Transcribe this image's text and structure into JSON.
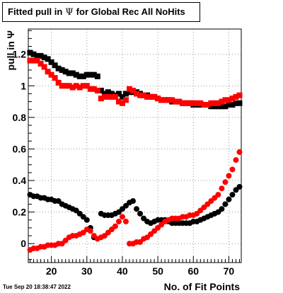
{
  "title": {
    "prefix": "Fitted pull in",
    "symbol": "Ψ",
    "suffix": "for Global Rec All NoHits"
  },
  "timestamp": "Tue Sep 20 18:38:47 2022",
  "colors": {
    "series_black": "#000000",
    "series_red": "#ff0000",
    "grid": "#999999"
  },
  "chart_data": {
    "type": "scatter",
    "xlabel": "No. of Fit Points",
    "ylabel": "pull in  Ψ",
    "xlim": [
      13.5,
      73.5
    ],
    "ylim": [
      -0.12,
      1.36
    ],
    "xticks": [
      20,
      30,
      40,
      50,
      60,
      70
    ],
    "yticks": [
      0,
      0.2,
      0.4,
      0.6,
      0.8,
      1,
      1.2
    ],
    "ytick_labels": [
      "0",
      "0.2",
      "0.4",
      "0.6",
      "0.8",
      "1",
      "1.2"
    ],
    "grid": true,
    "series": [
      {
        "color": "black",
        "marker": "square",
        "x": [
          14,
          15,
          16,
          17,
          18,
          19,
          20,
          21,
          22,
          23,
          24,
          25,
          26,
          27,
          28,
          29,
          30,
          31,
          32,
          33,
          34,
          35,
          36,
          37,
          38,
          39,
          40,
          41,
          42,
          43,
          44,
          45,
          46,
          47,
          48,
          49,
          50,
          51,
          52,
          53,
          54,
          55,
          56,
          57,
          58,
          59,
          60,
          61,
          62,
          63,
          64,
          65,
          66,
          67,
          68,
          69,
          70,
          71,
          72,
          73
        ],
        "y": [
          1.21,
          1.2,
          1.19,
          1.19,
          1.18,
          1.17,
          1.15,
          1.13,
          1.11,
          1.1,
          1.09,
          1.08,
          1.08,
          1.07,
          1.06,
          1.06,
          1.07,
          1.07,
          1.07,
          1.06,
          0.97,
          0.95,
          0.96,
          0.95,
          0.94,
          0.95,
          0.93,
          0.95,
          0.96,
          0.96,
          0.96,
          0.95,
          0.94,
          0.94,
          0.93,
          0.93,
          0.92,
          0.91,
          0.91,
          0.91,
          0.9,
          0.9,
          0.9,
          0.89,
          0.89,
          0.89,
          0.88,
          0.88,
          0.88,
          0.88,
          0.88,
          0.87,
          0.87,
          0.87,
          0.87,
          0.87,
          0.88,
          0.88,
          0.89,
          0.89
        ]
      },
      {
        "color": "red",
        "marker": "square",
        "x": [
          14,
          15,
          16,
          17,
          18,
          19,
          20,
          21,
          22,
          23,
          24,
          25,
          26,
          27,
          28,
          29,
          30,
          31,
          32,
          33,
          34,
          35,
          36,
          37,
          38,
          39,
          40,
          41,
          42,
          43,
          44,
          45,
          46,
          47,
          48,
          49,
          50,
          51,
          52,
          53,
          54,
          55,
          56,
          57,
          58,
          59,
          60,
          61,
          62,
          63,
          64,
          65,
          66,
          67,
          68,
          69,
          70,
          71,
          72,
          73
        ],
        "y": [
          1.16,
          1.16,
          1.16,
          1.14,
          1.12,
          1.09,
          1.07,
          1.05,
          1.02,
          1.0,
          1.0,
          1.0,
          0.99,
          1.0,
          0.99,
          1.0,
          1.0,
          0.98,
          0.98,
          0.97,
          0.92,
          0.93,
          0.93,
          0.93,
          0.93,
          0.9,
          0.89,
          0.91,
          0.98,
          0.97,
          0.95,
          0.94,
          0.94,
          0.93,
          0.93,
          0.93,
          0.92,
          0.91,
          0.91,
          0.91,
          0.91,
          0.9,
          0.9,
          0.89,
          0.89,
          0.89,
          0.89,
          0.89,
          0.89,
          0.88,
          0.88,
          0.89,
          0.89,
          0.89,
          0.9,
          0.91,
          0.91,
          0.92,
          0.93,
          0.94
        ]
      },
      {
        "color": "black",
        "marker": "circle",
        "x": [
          14,
          15,
          16,
          17,
          18,
          19,
          20,
          21,
          22,
          23,
          24,
          25,
          26,
          27,
          28,
          29,
          30,
          31,
          32,
          34,
          35,
          36,
          37,
          38,
          39,
          40,
          41,
          42,
          43,
          44,
          45,
          46,
          47,
          48,
          49,
          50,
          51,
          52,
          53,
          54,
          55,
          56,
          57,
          58,
          59,
          60,
          61,
          62,
          63,
          64,
          65,
          66,
          67,
          68,
          69,
          70,
          71,
          72,
          73
        ],
        "y": [
          0.31,
          0.3,
          0.3,
          0.29,
          0.29,
          0.28,
          0.28,
          0.27,
          0.27,
          0.25,
          0.24,
          0.23,
          0.22,
          0.21,
          0.19,
          0.17,
          0.15,
          0.1,
          0.04,
          0.19,
          0.18,
          0.18,
          0.18,
          0.19,
          0.2,
          0.22,
          0.24,
          0.26,
          0.27,
          0.22,
          0.19,
          0.16,
          0.14,
          0.13,
          0.14,
          0.15,
          0.15,
          0.15,
          0.14,
          0.13,
          0.13,
          0.13,
          0.13,
          0.13,
          0.13,
          0.14,
          0.14,
          0.15,
          0.16,
          0.17,
          0.18,
          0.19,
          0.2,
          0.22,
          0.25,
          0.28,
          0.31,
          0.34,
          0.36
        ]
      },
      {
        "color": "red",
        "marker": "circle",
        "x": [
          14,
          15,
          16,
          17,
          18,
          19,
          20,
          21,
          22,
          23,
          24,
          25,
          26,
          27,
          28,
          29,
          30,
          31,
          32,
          33,
          34,
          35,
          36,
          37,
          38,
          39,
          40,
          41,
          42,
          43,
          44,
          45,
          46,
          47,
          48,
          49,
          50,
          51,
          52,
          53,
          54,
          55,
          56,
          57,
          58,
          59,
          60,
          61,
          62,
          63,
          64,
          65,
          66,
          67,
          68,
          69,
          70,
          71,
          72,
          73
        ],
        "y": [
          -0.04,
          -0.03,
          -0.03,
          -0.02,
          -0.02,
          -0.01,
          -0.01,
          -0.01,
          0.0,
          0.0,
          0.02,
          0.04,
          0.05,
          0.05,
          0.06,
          0.07,
          0.09,
          0.08,
          0.05,
          0.03,
          0.04,
          0.05,
          0.07,
          0.09,
          0.11,
          0.14,
          0.17,
          0.14,
          0.0,
          0.0,
          0.01,
          0.01,
          0.03,
          0.04,
          0.06,
          0.08,
          0.1,
          0.12,
          0.14,
          0.15,
          0.16,
          0.16,
          0.16,
          0.17,
          0.17,
          0.18,
          0.18,
          0.19,
          0.21,
          0.23,
          0.25,
          0.27,
          0.29,
          0.31,
          0.35,
          0.39,
          0.43,
          0.47,
          0.53,
          0.58
        ]
      }
    ]
  }
}
